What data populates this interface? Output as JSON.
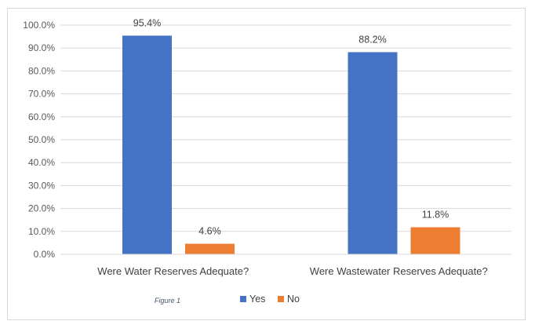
{
  "chart_data": {
    "type": "bar",
    "categories": [
      "Were Water Reserves Adequate?",
      "Were Wastewater Reserves Adequate?"
    ],
    "series": [
      {
        "name": "Yes",
        "values": [
          95.4,
          88.2
        ],
        "labels": [
          "95.4%",
          "88.2%"
        ],
        "color": "#4472c4"
      },
      {
        "name": "No",
        "values": [
          4.6,
          11.8
        ],
        "labels": [
          "4.6%",
          "11.8%"
        ],
        "color": "#ed7d31"
      }
    ],
    "ylim": [
      0,
      100
    ],
    "ytick_labels": [
      "0.0%",
      "10.0%",
      "20.0%",
      "30.0%",
      "40.0%",
      "50.0%",
      "60.0%",
      "70.0%",
      "80.0%",
      "90.0%",
      "100.0%"
    ],
    "grid": true,
    "legend": "bottom",
    "caption": "Figure 1"
  }
}
